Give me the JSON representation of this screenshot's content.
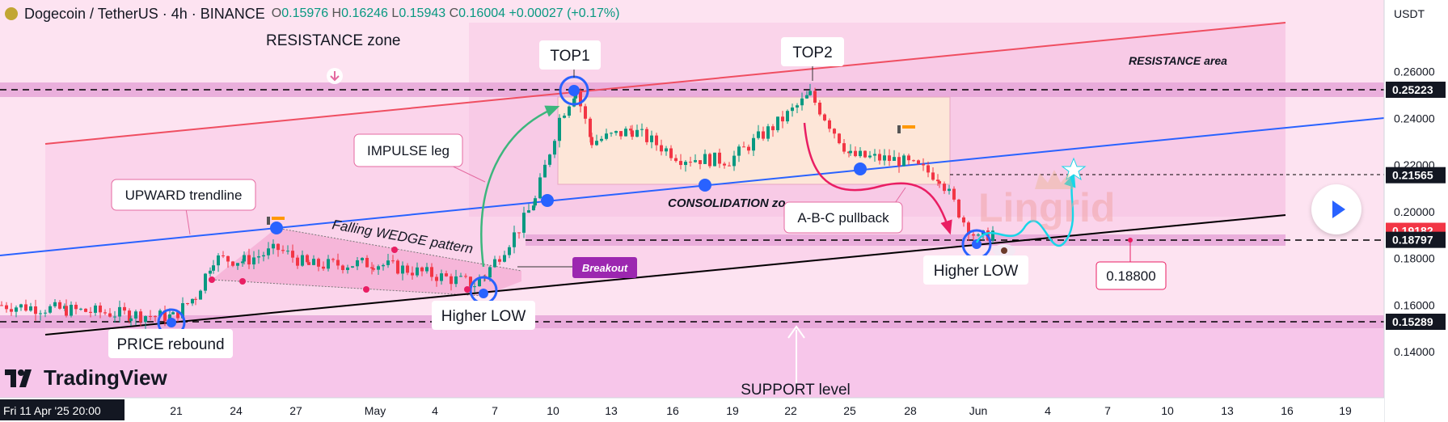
{
  "header": {
    "symbol": "Dogecoin / TetherUS · 4h · BINANCE",
    "o_label": "O",
    "o": "0.15976",
    "h_label": "H",
    "h": "0.16246",
    "l_label": "L",
    "l": "0.15943",
    "c_label": "C",
    "c": "0.16004",
    "change": "+0.00027 (+0.17%)"
  },
  "currency": "USDT",
  "branding": {
    "logo": "TradingView",
    "watermark": "Lingrid"
  },
  "colors": {
    "up": "#089981",
    "down": "#f23645",
    "resistance_line": "#ef4e61",
    "mid_line": "#2962ff",
    "support_line": "#000000",
    "band": "#e6a6d8",
    "pink_fill": "#f7cbe9",
    "consolidation": "#fde6d8",
    "arrow_green": "#3cb67d",
    "arrow_pink": "#e91e63",
    "arrow_cyan": "#18d6e8",
    "breakout": "#9c27b0"
  },
  "chart_data": {
    "type": "candlestick",
    "title": "Dogecoin / TetherUS · 4h · BINANCE",
    "y_ticks": [
      "0.26000",
      "0.24000",
      "0.22000",
      "0.20000",
      "0.18000",
      "0.16000",
      "0.14000"
    ],
    "x_ticks": [
      "Fri 11 Apr '25  20:00",
      "21",
      "24",
      "27",
      "May",
      "4",
      "7",
      "10",
      "13",
      "16",
      "19",
      "22",
      "25",
      "28",
      "Jun",
      "4",
      "7",
      "10",
      "13",
      "16",
      "19"
    ],
    "price_labels": [
      {
        "text": "0.25223",
        "kind": "level"
      },
      {
        "text": "0.21565",
        "kind": "level"
      },
      {
        "text": "0.19182",
        "kind": "current"
      },
      {
        "text": "0.18797",
        "kind": "level"
      },
      {
        "text": "0.15289",
        "kind": "level"
      }
    ],
    "ylim": [
      0.13,
      0.275
    ],
    "close_path": [
      [
        "Apr 11",
        0.16
      ],
      [
        "Apr 14",
        0.158
      ],
      [
        "Apr 17",
        0.156
      ],
      [
        "Apr 20",
        0.155
      ],
      [
        "Apr 22",
        0.164
      ],
      [
        "Apr 23",
        0.18
      ],
      [
        "Apr 25",
        0.179
      ],
      [
        "Apr 27",
        0.184
      ],
      [
        "Apr 29",
        0.177
      ],
      [
        "May 2",
        0.178
      ],
      [
        "May 4",
        0.174
      ],
      [
        "May 6",
        0.169
      ],
      [
        "May 7",
        0.173
      ],
      [
        "May 8",
        0.193
      ],
      [
        "May 9",
        0.205
      ],
      [
        "May 10",
        0.24
      ],
      [
        "May 11",
        0.252
      ],
      [
        "May 12",
        0.23
      ],
      [
        "May 14",
        0.235
      ],
      [
        "May 17",
        0.223
      ],
      [
        "May 19",
        0.222
      ],
      [
        "May 21",
        0.238
      ],
      [
        "May 23",
        0.25
      ],
      [
        "May 25",
        0.224
      ],
      [
        "May 27",
        0.222
      ],
      [
        "May 29",
        0.215
      ],
      [
        "May 31",
        0.196
      ],
      [
        "Jun 1",
        0.188
      ],
      [
        "Jun 2",
        0.1918
      ]
    ],
    "annotations": [
      "RESISTANCE zone",
      "TOP1",
      "TOP2",
      "RESISTANCE area",
      "IMPULSE leg",
      "UPWARD trendline",
      "Falling WEDGE pattern",
      "CONSOLIDATION zo",
      "A-B-C pullback",
      "Breakout",
      "Higher LOW",
      "Higher LOW",
      "PRICE rebound",
      "SUPPORT level",
      "0.18800"
    ]
  }
}
